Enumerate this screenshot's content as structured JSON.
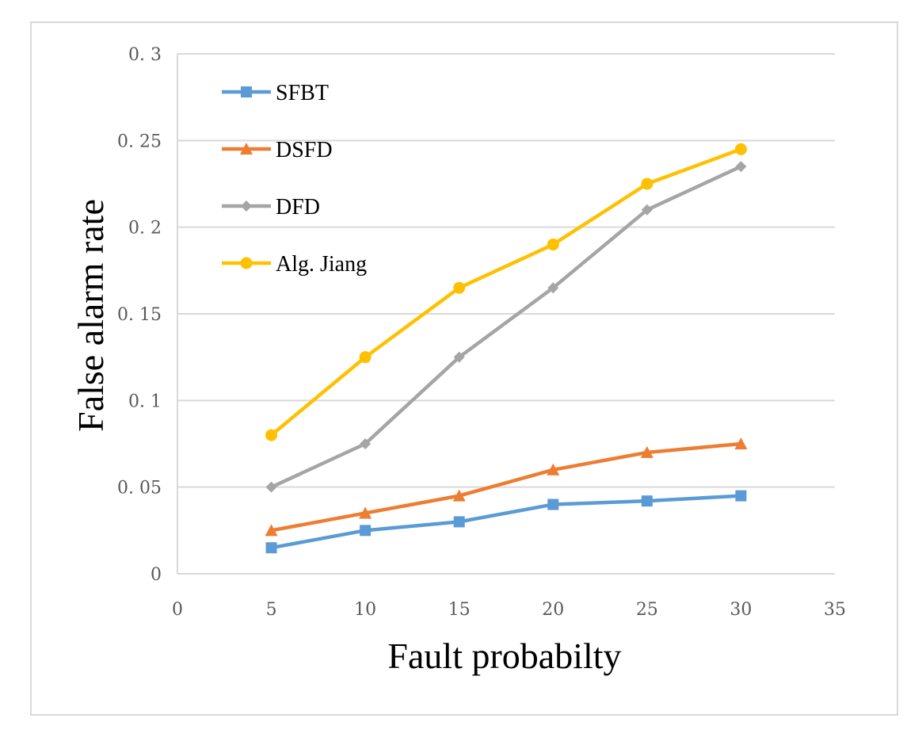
{
  "chart_data": {
    "type": "line",
    "title": "",
    "xlabel": "Fault probabilty",
    "ylabel": "False alarm rate",
    "xlim": [
      0,
      35
    ],
    "ylim": [
      0,
      0.3
    ],
    "x_ticks": [
      0,
      5,
      10,
      15,
      20,
      25,
      30,
      35
    ],
    "x_tick_labels": [
      "0",
      "5",
      "10",
      "15",
      "20",
      "25",
      "30",
      "35"
    ],
    "y_ticks": [
      0,
      0.05,
      0.1,
      0.15,
      0.2,
      0.25,
      0.3
    ],
    "y_tick_labels": [
      "0",
      "0. 05",
      "0. 1",
      "0. 15",
      "0. 2",
      "0. 25",
      "0. 3"
    ],
    "grid": true,
    "legend_position": "top-left",
    "x": [
      5,
      10,
      15,
      20,
      25,
      30
    ],
    "series": [
      {
        "name": "SFBT",
        "color": "#5b9bd5",
        "marker": "square",
        "values": [
          0.015,
          0.025,
          0.03,
          0.04,
          0.042,
          0.045
        ]
      },
      {
        "name": "DSFD",
        "color": "#ed7d31",
        "marker": "triangle",
        "values": [
          0.025,
          0.035,
          0.045,
          0.06,
          0.07,
          0.075
        ]
      },
      {
        "name": "DFD",
        "color": "#a5a5a5",
        "marker": "diamond",
        "values": [
          0.05,
          0.075,
          0.125,
          0.165,
          0.21,
          0.235
        ]
      },
      {
        "name": "Alg. Jiang",
        "color": "#ffc000",
        "marker": "circle",
        "values": [
          0.08,
          0.125,
          0.165,
          0.19,
          0.225,
          0.245
        ]
      }
    ]
  }
}
